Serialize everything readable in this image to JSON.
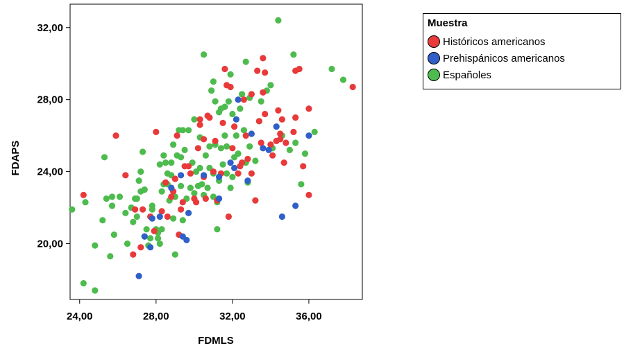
{
  "chart_data": {
    "type": "scatter",
    "xlabel": "FDMLS",
    "ylabel": "FDAPS",
    "xlim": [
      23.5,
      38.8
    ],
    "ylim": [
      16.9,
      33.3
    ],
    "x_ticks": [
      24,
      28,
      32,
      36
    ],
    "y_ticks": [
      20,
      24,
      28,
      32
    ],
    "x_tick_labels": [
      "24,00",
      "28,00",
      "32,00",
      "36,00"
    ],
    "y_tick_labels": [
      "20,00",
      "24,00",
      "28,00",
      "32,00"
    ],
    "grid": false,
    "legend": {
      "title": "Muestra",
      "placement": "right",
      "entries": [
        "Históricos americanos",
        "Prehispánicos americanos",
        "Españoles"
      ]
    },
    "series": [
      {
        "name": "Históricos americanos",
        "color": "#e83a3a",
        "points": [
          [
            24.2,
            22.7
          ],
          [
            25.9,
            26.0
          ],
          [
            26.4,
            23.8
          ],
          [
            26.8,
            19.4
          ],
          [
            26.9,
            21.9
          ],
          [
            27.2,
            19.8
          ],
          [
            27.3,
            21.9
          ],
          [
            27.7,
            21.5
          ],
          [
            27.9,
            20.7
          ],
          [
            28.0,
            26.2
          ],
          [
            28.3,
            21.8
          ],
          [
            28.5,
            23.4
          ],
          [
            28.6,
            21.5
          ],
          [
            28.8,
            22.6
          ],
          [
            28.9,
            22.9
          ],
          [
            29.0,
            23.6
          ],
          [
            29.1,
            26.0
          ],
          [
            29.2,
            20.5
          ],
          [
            29.3,
            21.9
          ],
          [
            29.4,
            22.3
          ],
          [
            29.5,
            24.3
          ],
          [
            29.7,
            24.3
          ],
          [
            29.8,
            23.9
          ],
          [
            30.0,
            22.5
          ],
          [
            30.1,
            22.3
          ],
          [
            30.2,
            25.3
          ],
          [
            30.3,
            26.6
          ],
          [
            30.3,
            26.9
          ],
          [
            30.5,
            25.8
          ],
          [
            30.5,
            23.7
          ],
          [
            30.6,
            22.5
          ],
          [
            30.7,
            27.1
          ],
          [
            30.8,
            27.0
          ],
          [
            31.0,
            24.0
          ],
          [
            31.1,
            25.7
          ],
          [
            31.2,
            22.4
          ],
          [
            31.4,
            23.9
          ],
          [
            31.5,
            26.7
          ],
          [
            31.6,
            29.7
          ],
          [
            31.7,
            28.8
          ],
          [
            31.8,
            21.5
          ],
          [
            31.9,
            28.7
          ],
          [
            32.0,
            25.3
          ],
          [
            32.1,
            26.5
          ],
          [
            32.3,
            23.9
          ],
          [
            32.4,
            24.3
          ],
          [
            32.5,
            24.5
          ],
          [
            32.6,
            28.0
          ],
          [
            32.7,
            26.0
          ],
          [
            32.8,
            24.7
          ],
          [
            33.0,
            28.3
          ],
          [
            33.0,
            23.9
          ],
          [
            33.2,
            22.4
          ],
          [
            33.3,
            29.6
          ],
          [
            33.4,
            26.8
          ],
          [
            33.5,
            25.6
          ],
          [
            33.6,
            28.4
          ],
          [
            33.6,
            30.3
          ],
          [
            33.7,
            27.2
          ],
          [
            33.7,
            29.5
          ],
          [
            34.0,
            25.5
          ],
          [
            34.1,
            24.9
          ],
          [
            34.3,
            25.7
          ],
          [
            34.4,
            27.4
          ],
          [
            34.5,
            26.1
          ],
          [
            34.5,
            25.8
          ],
          [
            34.6,
            26.9
          ],
          [
            34.7,
            24.5
          ],
          [
            34.8,
            25.6
          ],
          [
            35.2,
            26.2
          ],
          [
            35.3,
            29.6
          ],
          [
            35.3,
            27.0
          ],
          [
            35.5,
            29.7
          ],
          [
            35.7,
            24.3
          ],
          [
            36.0,
            22.7
          ],
          [
            36.0,
            27.5
          ],
          [
            38.3,
            28.7
          ]
        ]
      },
      {
        "name": "Prehispánicos americanos",
        "color": "#2f5fc7",
        "points": [
          [
            27.1,
            18.2
          ],
          [
            27.4,
            20.4
          ],
          [
            27.7,
            19.8
          ],
          [
            27.8,
            21.4
          ],
          [
            28.2,
            21.5
          ],
          [
            28.8,
            23.1
          ],
          [
            29.3,
            23.8
          ],
          [
            29.4,
            20.4
          ],
          [
            29.6,
            20.2
          ],
          [
            29.7,
            21.7
          ],
          [
            30.5,
            23.8
          ],
          [
            31.3,
            22.5
          ],
          [
            31.3,
            23.7
          ],
          [
            31.9,
            24.5
          ],
          [
            32.1,
            24.2
          ],
          [
            32.2,
            26.9
          ],
          [
            32.3,
            28.0
          ],
          [
            32.8,
            23.5
          ],
          [
            33.0,
            26.1
          ],
          [
            33.6,
            25.3
          ],
          [
            33.9,
            25.2
          ],
          [
            34.3,
            26.5
          ],
          [
            34.6,
            21.5
          ],
          [
            35.3,
            22.1
          ],
          [
            36.0,
            26.0
          ]
        ]
      },
      {
        "name": "Españoles",
        "color": "#4dbb4d",
        "points": [
          [
            23.6,
            21.9
          ],
          [
            24.2,
            17.8
          ],
          [
            24.3,
            22.3
          ],
          [
            24.8,
            19.9
          ],
          [
            24.8,
            17.4
          ],
          [
            25.2,
            21.3
          ],
          [
            25.3,
            24.8
          ],
          [
            25.4,
            22.5
          ],
          [
            25.6,
            19.3
          ],
          [
            25.7,
            22.6
          ],
          [
            25.7,
            22.1
          ],
          [
            25.8,
            20.5
          ],
          [
            26.1,
            22.6
          ],
          [
            26.4,
            21.7
          ],
          [
            26.5,
            20.0
          ],
          [
            26.7,
            22.0
          ],
          [
            26.8,
            21.2
          ],
          [
            26.9,
            22.5
          ],
          [
            27.0,
            22.5
          ],
          [
            27.0,
            21.5
          ],
          [
            27.1,
            23.5
          ],
          [
            27.2,
            24.0
          ],
          [
            27.2,
            22.9
          ],
          [
            27.3,
            25.1
          ],
          [
            27.4,
            23.0
          ],
          [
            27.4,
            20.4
          ],
          [
            27.5,
            20.8
          ],
          [
            27.6,
            19.9
          ],
          [
            27.7,
            20.3
          ],
          [
            27.8,
            22.1
          ],
          [
            27.8,
            21.9
          ],
          [
            28.0,
            20.8
          ],
          [
            28.1,
            20.6
          ],
          [
            28.1,
            20.3
          ],
          [
            28.2,
            20.0
          ],
          [
            28.2,
            24.4
          ],
          [
            28.3,
            20.8
          ],
          [
            28.3,
            22.9
          ],
          [
            28.4,
            23.3
          ],
          [
            28.4,
            24.9
          ],
          [
            28.5,
            24.5
          ],
          [
            28.6,
            23.9
          ],
          [
            28.6,
            23.3
          ],
          [
            28.7,
            22.4
          ],
          [
            28.8,
            24.5
          ],
          [
            28.8,
            23.8
          ],
          [
            28.9,
            21.4
          ],
          [
            28.9,
            25.5
          ],
          [
            29.0,
            19.4
          ],
          [
            29.0,
            22.6
          ],
          [
            29.1,
            24.9
          ],
          [
            29.2,
            26.3
          ],
          [
            29.3,
            24.8
          ],
          [
            29.3,
            23.2
          ],
          [
            29.4,
            26.3
          ],
          [
            29.4,
            21.3
          ],
          [
            29.5,
            25.2
          ],
          [
            29.6,
            22.5
          ],
          [
            29.7,
            26.3
          ],
          [
            29.8,
            23.1
          ],
          [
            29.9,
            24.5
          ],
          [
            30.0,
            26.9
          ],
          [
            30.0,
            22.8
          ],
          [
            30.1,
            24.0
          ],
          [
            30.2,
            23.2
          ],
          [
            30.3,
            24.2
          ],
          [
            30.3,
            25.9
          ],
          [
            30.4,
            23.3
          ],
          [
            30.5,
            22.7
          ],
          [
            30.5,
            30.5
          ],
          [
            30.6,
            24.9
          ],
          [
            30.7,
            23.1
          ],
          [
            30.8,
            25.4
          ],
          [
            30.8,
            24.2
          ],
          [
            30.9,
            28.5
          ],
          [
            31.0,
            23.9
          ],
          [
            31.0,
            29.0
          ],
          [
            31.0,
            22.6
          ],
          [
            31.1,
            27.9
          ],
          [
            31.1,
            25.5
          ],
          [
            31.2,
            22.3
          ],
          [
            31.2,
            20.8
          ],
          [
            31.3,
            23.5
          ],
          [
            31.3,
            27.3
          ],
          [
            31.4,
            25.3
          ],
          [
            31.4,
            27.5
          ],
          [
            31.5,
            24.4
          ],
          [
            31.6,
            26.0
          ],
          [
            31.6,
            27.6
          ],
          [
            31.7,
            23.9
          ],
          [
            31.7,
            25.4
          ],
          [
            31.8,
            27.9
          ],
          [
            31.9,
            23.1
          ],
          [
            31.9,
            29.4
          ],
          [
            32.0,
            23.7
          ],
          [
            32.0,
            27.2
          ],
          [
            32.1,
            24.8
          ],
          [
            32.2,
            26.0
          ],
          [
            32.3,
            25.0
          ],
          [
            32.4,
            27.5
          ],
          [
            32.5,
            28.3
          ],
          [
            32.6,
            26.3
          ],
          [
            32.7,
            30.1
          ],
          [
            32.7,
            24.5
          ],
          [
            32.8,
            23.4
          ],
          [
            32.9,
            25.4
          ],
          [
            32.9,
            28.1
          ],
          [
            33.2,
            24.6
          ],
          [
            33.4,
            26.8
          ],
          [
            33.5,
            27.9
          ],
          [
            33.8,
            28.5
          ],
          [
            34.0,
            28.8
          ],
          [
            34.1,
            25.3
          ],
          [
            34.4,
            32.4
          ],
          [
            34.6,
            26.0
          ],
          [
            35.0,
            25.2
          ],
          [
            35.2,
            30.5
          ],
          [
            35.3,
            25.6
          ],
          [
            35.6,
            23.3
          ],
          [
            35.8,
            25.0
          ],
          [
            36.3,
            26.2
          ],
          [
            37.2,
            29.7
          ],
          [
            37.8,
            29.1
          ]
        ]
      }
    ]
  }
}
